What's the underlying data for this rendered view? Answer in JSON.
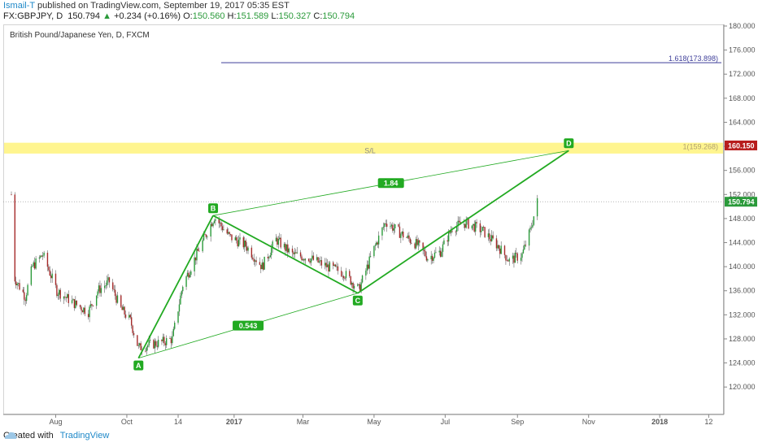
{
  "header": {
    "user": "Ismail-T",
    "published": "published on TradingView.com, September 19, 2017 05:35 EST",
    "symbol": "FX:GBPJPY, D",
    "last": "150.794",
    "change_arrow": "▲",
    "change": "+0.234 (+0.16%)",
    "o_label": "O:",
    "o_val": "150.560",
    "h_label": "H:",
    "h_val": "151.589",
    "l_label": "L:",
    "l_val": "150.327",
    "c_label": "C:",
    "c_val": "150.794"
  },
  "instrument_title": "British Pound/Japanese Yen, D, FXCM",
  "footer": {
    "created_with": "Created with",
    "brand": "TradingView"
  },
  "colors": {
    "up": "#2a9a3a",
    "down": "#a52a2a",
    "pattern": "#22aa22",
    "sl_band": "#ffee44",
    "price_label": "#b71c1c",
    "fib_line": "#3f3f9a"
  },
  "chart_data": {
    "type": "candlestick",
    "title": "British Pound/Japanese Yen, D, FXCM",
    "ylim": [
      118,
      180
    ],
    "y_ticks": [
      "180.000",
      "176.000",
      "172.000",
      "168.000",
      "164.000",
      "160.000",
      "156.000",
      "152.000",
      "148.000",
      "144.000",
      "140.000",
      "136.000",
      "132.000",
      "128.000",
      "124.000",
      "120.000"
    ],
    "x_ticks": [
      "Aug",
      "Oct",
      "14",
      "2017",
      "Mar",
      "May",
      "Jul",
      "Sep",
      "Nov",
      "2018",
      "12"
    ],
    "x_range": [
      "2016-06-24",
      "2018-02-18"
    ],
    "x_tick_dates": [
      "2016-08-01",
      "2016-10-01",
      "2016-11-14",
      "2017-01-01",
      "2017-03-01",
      "2017-05-01",
      "2017-07-01",
      "2017-09-01",
      "2017-11-01",
      "2018-01-01",
      "2018-02-12"
    ],
    "close_path": [
      [
        "2016-06-24",
        152.0
      ],
      [
        "2016-06-27",
        138.0
      ],
      [
        "2016-07-06",
        135.0
      ],
      [
        "2016-07-12",
        140.0
      ],
      [
        "2016-07-21",
        142.0
      ],
      [
        "2016-08-02",
        136.0
      ],
      [
        "2016-08-16",
        134.0
      ],
      [
        "2016-08-29",
        132.5
      ],
      [
        "2016-09-06",
        136.0
      ],
      [
        "2016-09-16",
        137.5
      ],
      [
        "2016-09-26",
        133.0
      ],
      [
        "2016-10-04",
        131.0
      ],
      [
        "2016-10-11",
        126.5
      ],
      [
        "2016-10-20",
        127.0
      ],
      [
        "2016-11-01",
        127.5
      ],
      [
        "2016-11-09",
        128.0
      ],
      [
        "2016-11-18",
        137.0
      ],
      [
        "2016-12-01",
        142.5
      ],
      [
        "2016-12-15",
        148.3
      ],
      [
        "2016-12-28",
        145.0
      ],
      [
        "2017-01-11",
        143.5
      ],
      [
        "2017-01-25",
        140.0
      ],
      [
        "2017-02-06",
        144.5
      ],
      [
        "2017-02-20",
        142.0
      ],
      [
        "2017-03-06",
        141.5
      ],
      [
        "2017-03-22",
        140.0
      ],
      [
        "2017-04-05",
        139.0
      ],
      [
        "2017-04-18",
        136.2
      ],
      [
        "2017-05-01",
        143.0
      ],
      [
        "2017-05-11",
        147.5
      ],
      [
        "2017-05-24",
        145.5
      ],
      [
        "2017-06-08",
        143.5
      ],
      [
        "2017-06-16",
        141.5
      ],
      [
        "2017-06-27",
        142.5
      ],
      [
        "2017-07-07",
        146.5
      ],
      [
        "2017-07-19",
        147.3
      ],
      [
        "2017-08-02",
        146.0
      ],
      [
        "2017-08-15",
        143.5
      ],
      [
        "2017-08-25",
        141.0
      ],
      [
        "2017-09-05",
        142.0
      ],
      [
        "2017-09-12",
        146.0
      ],
      [
        "2017-09-18",
        150.794
      ]
    ],
    "pattern": {
      "points": [
        {
          "label": "A",
          "date": "2016-10-11",
          "price": 124.8
        },
        {
          "label": "B",
          "date": "2016-12-14",
          "price": 148.5
        },
        {
          "label": "C",
          "date": "2017-04-17",
          "price": 135.6
        },
        {
          "label": "D",
          "date": "2017-10-15",
          "price": 159.3
        }
      ],
      "ratios": [
        {
          "label": "0.543",
          "between": [
            "A",
            "C"
          ]
        },
        {
          "label": "1.84",
          "between": [
            "B",
            "D"
          ]
        }
      ]
    },
    "levels": [
      {
        "label": "1.618(173.898)",
        "price": 173.898
      },
      {
        "label": "1(159.268)",
        "price": 159.268
      }
    ],
    "sl_band": {
      "label": "S/L",
      "from": 158.8,
      "to": 160.6
    },
    "price_labels": [
      {
        "text": "160.150",
        "price": 160.15
      },
      {
        "text": "150.794",
        "price": 150.794
      }
    ],
    "last_price": 150.794
  }
}
